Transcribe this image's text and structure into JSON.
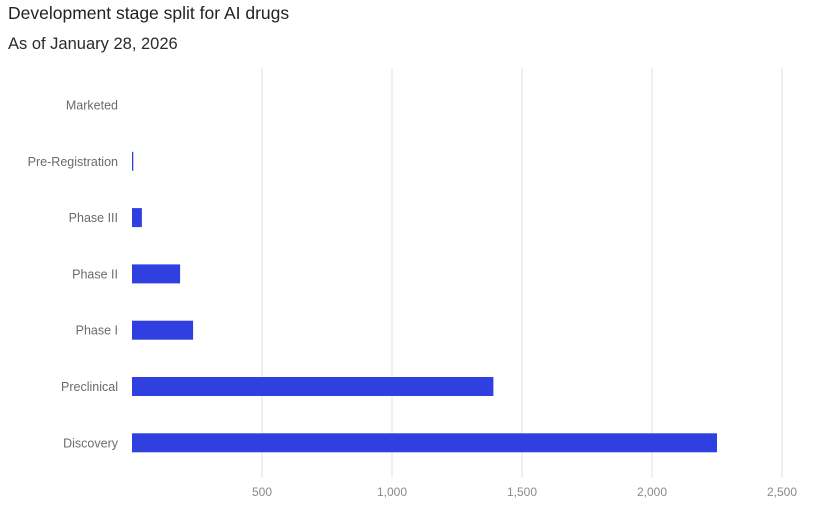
{
  "header": {
    "title": "Development stage split for AI drugs",
    "subtitle": "As of January 28, 2026"
  },
  "chart_data": {
    "type": "bar",
    "orientation": "horizontal",
    "title": "Development stage split for AI drugs",
    "subtitle": "As of January 28, 2026",
    "categories": [
      "Marketed",
      "Pre-Registration",
      "Phase III",
      "Phase II",
      "Phase I",
      "Preclinical",
      "Discovery"
    ],
    "values": [
      0,
      5,
      38,
      185,
      235,
      1390,
      2250
    ],
    "xlim": [
      0,
      2500
    ],
    "xticks": [
      500,
      1000,
      1500,
      2000,
      2500
    ],
    "xtick_labels": [
      "500",
      "1,000",
      "1,500",
      "2,000",
      "2,500"
    ],
    "bar_color": "#2f3fe0",
    "grid": "vertical",
    "legend": "none"
  }
}
